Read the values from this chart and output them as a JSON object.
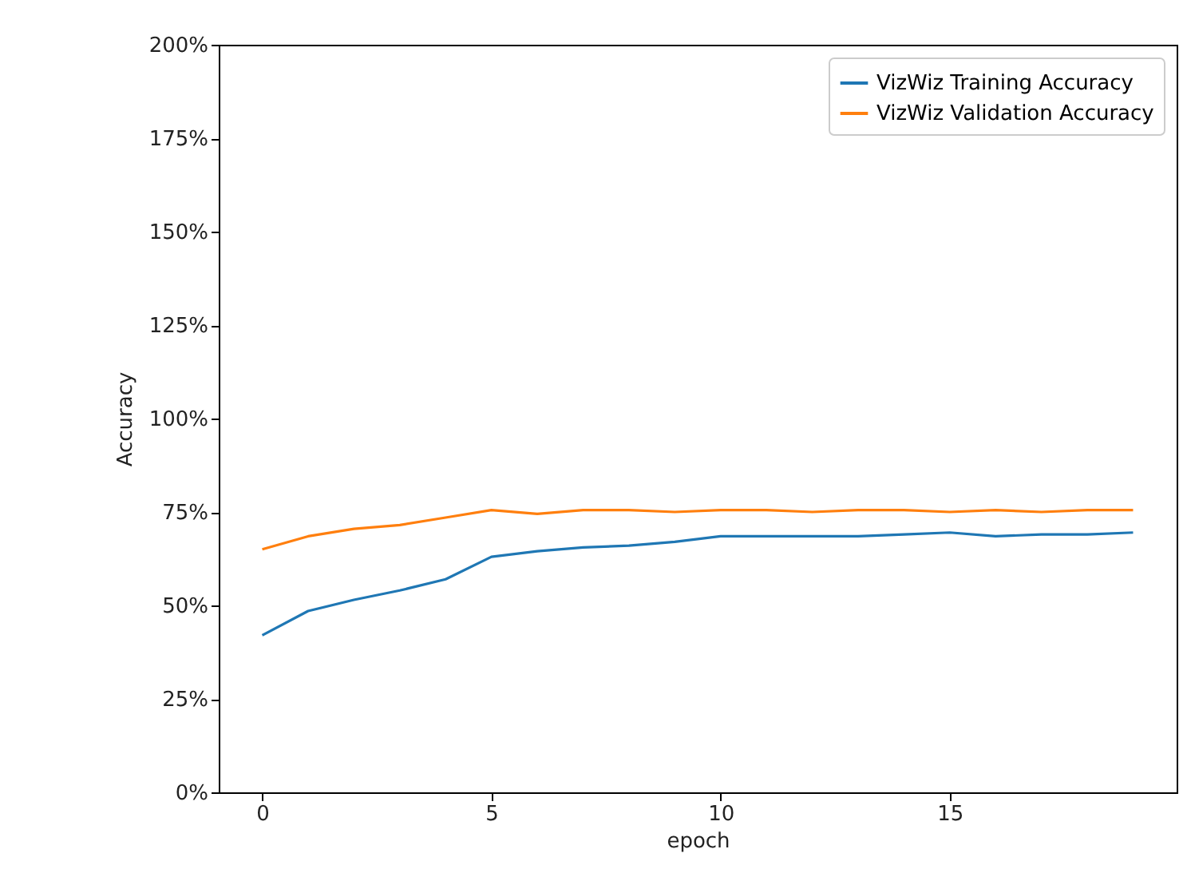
{
  "chart_data": {
    "type": "line",
    "xlabel": "epoch",
    "ylabel": "Accuracy",
    "x": [
      0,
      1,
      2,
      3,
      4,
      5,
      6,
      7,
      8,
      9,
      10,
      11,
      12,
      13,
      14,
      15,
      16,
      17,
      18,
      19
    ],
    "series": [
      {
        "name": "VizWiz Training Accuracy",
        "color": "#1f77b4",
        "values": [
          42,
          48.5,
          51.5,
          54,
          57,
          63,
          64.5,
          65.5,
          66,
          67,
          68.5,
          68.5,
          68.5,
          68.5,
          69,
          69.5,
          68.5,
          69,
          69,
          69.5
        ]
      },
      {
        "name": "VizWiz Validation Accuracy",
        "color": "#ff7f0e",
        "values": [
          65,
          68.5,
          70.5,
          71.5,
          73.5,
          75.5,
          74.5,
          75.5,
          75.5,
          75,
          75.5,
          75.5,
          75,
          75.5,
          75.5,
          75,
          75.5,
          75,
          75.5,
          75.5
        ]
      }
    ],
    "xlim": [
      -0.95,
      19.95
    ],
    "xticks": [
      0,
      5,
      10,
      15
    ],
    "ylim": [
      0,
      200
    ],
    "yticks": [
      {
        "value": 0,
        "label": "0%"
      },
      {
        "value": 25,
        "label": "25%"
      },
      {
        "value": 50,
        "label": "50%"
      },
      {
        "value": 75,
        "label": "75%"
      },
      {
        "value": 100,
        "label": "100%"
      },
      {
        "value": 125,
        "label": "125%"
      },
      {
        "value": 150,
        "label": "150%"
      },
      {
        "value": 175,
        "label": "175%"
      },
      {
        "value": 200,
        "label": "200%"
      }
    ],
    "legend": "top right",
    "grid": false
  }
}
